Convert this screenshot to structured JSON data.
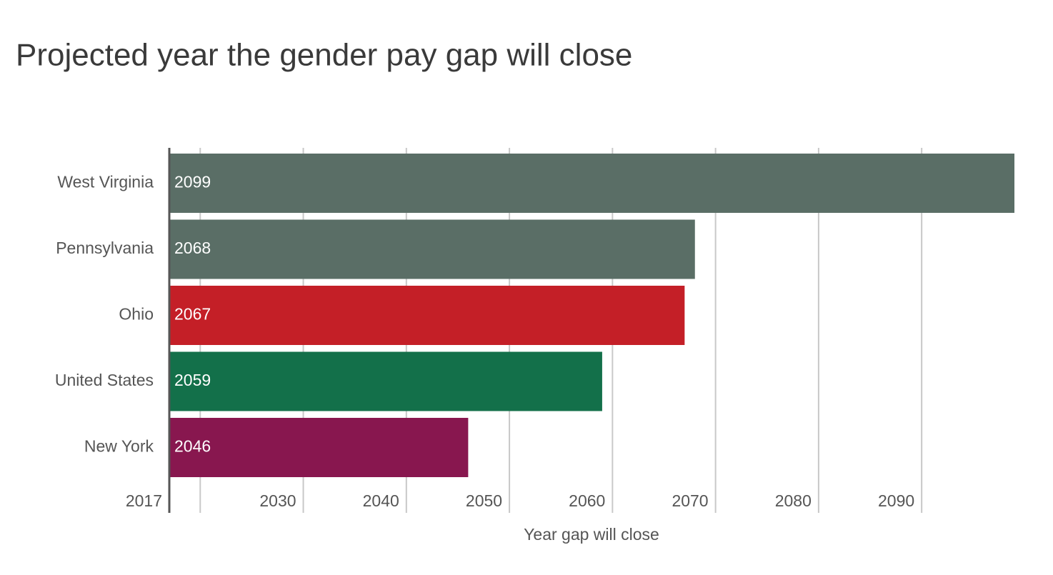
{
  "chart_data": {
    "type": "bar",
    "orientation": "horizontal",
    "title": "Projected year the gender pay gap will close",
    "x_label": "Year gap will close",
    "categories": [
      "West Virginia",
      "Pennsylvania",
      "Ohio",
      "United States",
      "New York"
    ],
    "values": [
      2099,
      2068,
      2067,
      2059,
      2046
    ],
    "colors": [
      "#5a6e66",
      "#5a6e66",
      "#c41f27",
      "#13704a",
      "#88174f"
    ],
    "xlim": [
      2017,
      2099
    ],
    "xticks": [
      2017,
      2030,
      2040,
      2050,
      2060,
      2070,
      2080,
      2090
    ],
    "xgrid": [
      2020,
      2030,
      2040,
      2050,
      2060,
      2070,
      2080,
      2090
    ],
    "grid": true
  }
}
